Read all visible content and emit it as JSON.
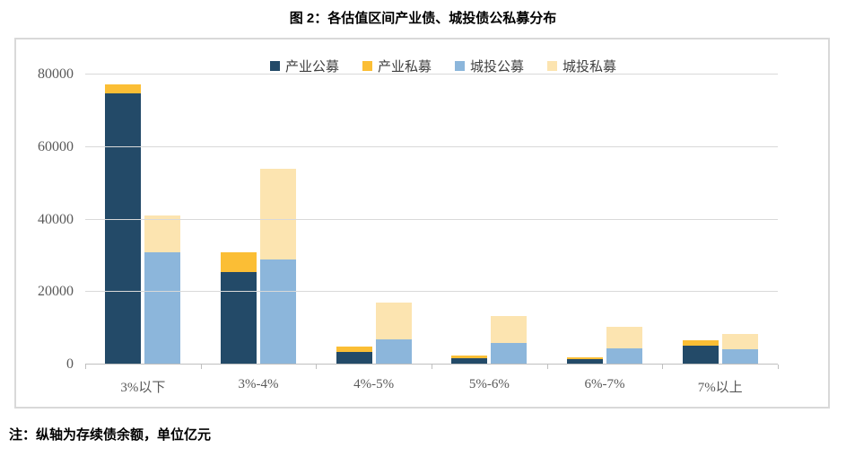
{
  "title": "图 2：各估值区间产业债、城投债公私募分布",
  "note": "注：纵轴为存续债余额，单位亿元",
  "chart_data": {
    "type": "bar",
    "subtype": "two-stacked-columns-per-category",
    "title": "图 2：各估值区间产业债、城投债公私募分布",
    "categories": [
      "3%以下",
      "3%-4%",
      "4%-5%",
      "5%-6%",
      "6%-7%",
      "7%以上"
    ],
    "series": [
      {
        "name": "产业公募",
        "stack": "产业",
        "color": "#234A68",
        "values": [
          74700,
          25400,
          3500,
          1800,
          1400,
          5200
        ]
      },
      {
        "name": "产业私募",
        "stack": "产业",
        "color": "#FBBE35",
        "values": [
          2600,
          5600,
          1500,
          800,
          500,
          1500
        ]
      },
      {
        "name": "城投公募",
        "stack": "城投",
        "color": "#8CB6DB",
        "values": [
          31000,
          29000,
          7000,
          5900,
          4500,
          4300
        ]
      },
      {
        "name": "城投私募",
        "stack": "城投",
        "color": "#FCE4B0",
        "values": [
          10000,
          24900,
          10100,
          7500,
          6000,
          4150
        ]
      }
    ],
    "xlabel": "",
    "ylabel": "存续债余额（亿元）",
    "ylim": [
      0,
      80000
    ],
    "yticks": [
      0,
      20000,
      40000,
      60000,
      80000
    ],
    "grid": true,
    "legend_position": "top",
    "gridline_color": "#D9D9D9",
    "axis_line_color": "#BFBFBF",
    "tick_label_color": "#595959"
  }
}
